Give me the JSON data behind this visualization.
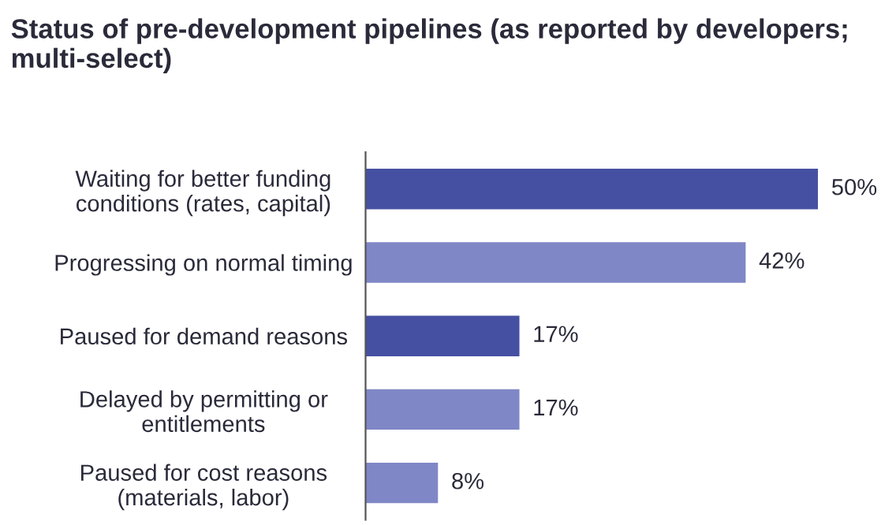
{
  "chart_data": {
    "type": "bar",
    "orientation": "horizontal",
    "title": "Status of pre-development pipelines (as reported by developers; multi-select)",
    "categories": [
      "Waiting for better funding\nconditions (rates, capital)",
      "Progressing on normal timing",
      "Paused for demand reasons",
      "Delayed by permitting or\nentitlements",
      "Paused for cost reasons\n(materials, labor)"
    ],
    "values": [
      50,
      42,
      17,
      17,
      8
    ],
    "colors": [
      "#4650a2",
      "#7f87c6",
      "#4650a2",
      "#7f87c6",
      "#7f87c6"
    ],
    "value_labels": [
      "50%",
      "42%",
      "17%",
      "17%",
      "8%"
    ],
    "tick_labels": "y",
    "grid": false,
    "legend": false
  }
}
